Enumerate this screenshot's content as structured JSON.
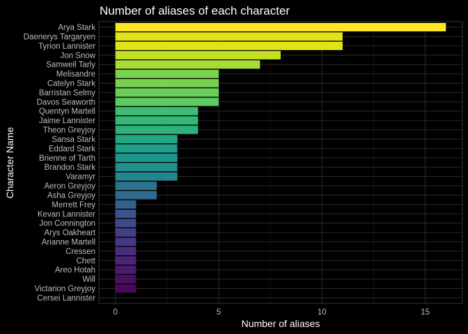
{
  "chart_data": {
    "type": "bar",
    "orientation": "horizontal",
    "title": "Number of aliases of each character",
    "xlabel": "Number of aliases",
    "ylabel": "Character Name",
    "xlim": [
      0,
      16.8
    ],
    "xticks": [
      0,
      5,
      10,
      15
    ],
    "grid": true,
    "legend": "none",
    "colormap": "viridis",
    "categories": [
      "Arya Stark",
      "Daenerys Targaryen",
      "Tyrion Lannister",
      "Jon Snow",
      "Samwell Tarly",
      "Melisandre",
      "Catelyn Stark",
      "Barristan Selmy",
      "Davos Seaworth",
      "Quentyn Martell",
      "Jaime Lannister",
      "Theon Greyjoy",
      "Sansa Stark",
      "Eddard Stark",
      "Brienne of Tarth",
      "Brandon Stark",
      "Varamyr",
      "Aeron Greyjoy",
      "Asha Greyjoy",
      "Merrett Frey",
      "Kevan Lannister",
      "Jon Connington",
      "Arys Oakheart",
      "Arianne Martell",
      "Cressen",
      "Chett",
      "Areo Hotah",
      "Will",
      "Victarion Greyjoy",
      "Cersei Lannister"
    ],
    "values": [
      16,
      11,
      11,
      8,
      7,
      5,
      5,
      5,
      5,
      4,
      4,
      4,
      3,
      3,
      3,
      3,
      3,
      2,
      2,
      1,
      1,
      1,
      1,
      1,
      1,
      1,
      1,
      1,
      1,
      0
    ],
    "colors": [
      "#fde725",
      "#e2e418",
      "#e2e418",
      "#c2df23",
      "#a8db34",
      "#7ad151",
      "#7ad151",
      "#6ccd5a",
      "#5ec962",
      "#40bd72",
      "#35b779",
      "#2db27d",
      "#22a884",
      "#1f9e89",
      "#1f968b",
      "#218f8d",
      "#25858e",
      "#2c728e",
      "#306a8e",
      "#355f8d",
      "#3a548c",
      "#3e4989",
      "#423f85",
      "#453781",
      "#472d7b",
      "#482576",
      "#481b6d",
      "#471063",
      "#46085c",
      "#440154"
    ],
    "background": "#000000",
    "grid_color": "#2b2b2b"
  }
}
